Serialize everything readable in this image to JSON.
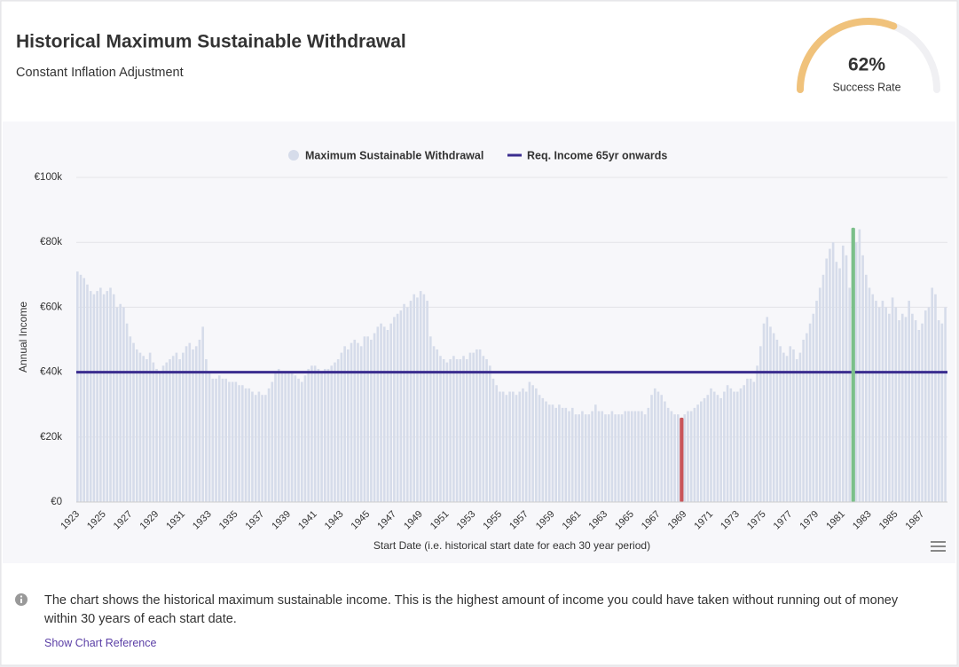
{
  "header": {
    "title": "Historical Maximum Sustainable Withdrawal",
    "subtitle": "Constant Inflation Adjustment"
  },
  "gauge": {
    "value": 62,
    "value_label": "62%",
    "label": "Success Rate",
    "color": "#f0c27b",
    "track_color": "#f0f0f3"
  },
  "chart_data": {
    "type": "bar",
    "y_label": "Annual Income",
    "x_label": "Start Date (i.e. historical start date for each 30 year period)",
    "ylim": [
      0,
      100000
    ],
    "yticks": [
      {
        "value": 0,
        "label": "€0"
      },
      {
        "value": 20000,
        "label": "€20k"
      },
      {
        "value": 40000,
        "label": "€40k"
      },
      {
        "value": 60000,
        "label": "€60k"
      },
      {
        "value": 80000,
        "label": "€80k"
      },
      {
        "value": 100000,
        "label": "€100k"
      }
    ],
    "grid": true,
    "lowest_color": "#c9555a",
    "highest_color": "#7bbf8a",
    "reference_line": {
      "name": "Req. Income 65yr onwards",
      "value": 40000,
      "color": "#3b2d8f"
    },
    "categories": [
      "1923",
      null,
      null,
      null,
      null,
      null,
      null,
      null,
      "1925",
      null,
      null,
      null,
      null,
      null,
      null,
      null,
      "1927",
      null,
      null,
      null,
      null,
      null,
      null,
      null,
      "1929",
      null,
      null,
      null,
      null,
      null,
      null,
      null,
      "1931",
      null,
      null,
      null,
      null,
      null,
      null,
      null,
      "1933",
      null,
      null,
      null,
      null,
      null,
      null,
      null,
      "1935",
      null,
      null,
      null,
      null,
      null,
      null,
      null,
      "1937",
      null,
      null,
      null,
      null,
      null,
      null,
      null,
      "1939",
      null,
      null,
      null,
      null,
      null,
      null,
      null,
      "1941",
      null,
      null,
      null,
      null,
      null,
      null,
      null,
      "1943",
      null,
      null,
      null,
      null,
      null,
      null,
      null,
      "1945",
      null,
      null,
      null,
      null,
      null,
      null,
      null,
      "1947",
      null,
      null,
      null,
      null,
      null,
      null,
      null,
      "1949",
      null,
      null,
      null,
      null,
      null,
      null,
      null,
      "1951",
      null,
      null,
      null,
      null,
      null,
      null,
      null,
      "1953",
      null,
      null,
      null,
      null,
      null,
      null,
      null,
      "1955",
      null,
      null,
      null,
      null,
      null,
      null,
      null,
      "1957",
      null,
      null,
      null,
      null,
      null,
      null,
      null,
      "1959",
      null,
      null,
      null,
      null,
      null,
      null,
      null,
      "1961",
      null,
      null,
      null,
      null,
      null,
      null,
      null,
      "1963",
      null,
      null,
      null,
      null,
      null,
      null,
      null,
      "1965",
      null,
      null,
      null,
      null,
      null,
      null,
      null,
      "1967",
      null,
      null,
      null,
      null,
      null,
      null,
      null,
      "1969",
      null,
      null,
      null,
      null,
      null,
      null,
      null,
      "1971",
      null,
      null,
      null,
      null,
      null,
      null,
      null,
      "1973",
      null,
      null,
      null,
      null,
      null,
      null,
      null,
      "1975",
      null,
      null,
      null,
      null,
      null,
      null,
      null,
      "1977",
      null,
      null,
      null,
      null,
      null,
      null,
      null,
      "1979",
      null,
      null,
      null,
      null,
      null,
      null,
      null,
      "1981",
      null,
      null,
      null,
      null,
      null,
      null,
      null,
      "1983",
      null,
      null,
      null,
      null,
      null,
      null,
      null,
      "1985",
      null,
      null,
      null,
      null,
      null,
      null,
      null,
      "1987",
      null,
      null,
      null,
      null,
      null,
      null,
      null
    ],
    "series": [
      {
        "name": "Maximum Sustainable Withdrawal",
        "color": "#d6dcea",
        "values": [
          71000,
          70000,
          69000,
          67000,
          65000,
          64000,
          65000,
          66000,
          64000,
          65000,
          66000,
          64000,
          60000,
          61000,
          60000,
          55000,
          51000,
          49000,
          47000,
          46000,
          45000,
          44000,
          46000,
          43000,
          41000,
          40000,
          42000,
          43000,
          44000,
          45000,
          46000,
          44000,
          46000,
          48000,
          49000,
          47000,
          48000,
          50000,
          54000,
          44000,
          40000,
          38000,
          38000,
          39000,
          38000,
          38000,
          37000,
          37000,
          37000,
          36000,
          36000,
          35000,
          35000,
          34000,
          33000,
          34000,
          33000,
          33000,
          35000,
          37000,
          40000,
          41000,
          40000,
          40000,
          40000,
          40000,
          39000,
          38000,
          37000,
          39000,
          41000,
          42000,
          42000,
          41000,
          40000,
          41000,
          41000,
          42000,
          43000,
          44000,
          46000,
          48000,
          47000,
          49000,
          50000,
          49000,
          48000,
          51000,
          51000,
          50000,
          52000,
          54000,
          55000,
          54000,
          53000,
          55000,
          57000,
          58000,
          59000,
          61000,
          60000,
          62000,
          64000,
          63000,
          65000,
          64000,
          62000,
          51000,
          48000,
          47000,
          45000,
          44000,
          43000,
          44000,
          45000,
          44000,
          44000,
          45000,
          44000,
          46000,
          46000,
          47000,
          47000,
          45000,
          44000,
          42000,
          38000,
          36000,
          34000,
          34000,
          33000,
          34000,
          34000,
          33000,
          34000,
          35000,
          34000,
          37000,
          36000,
          35000,
          33000,
          32000,
          31000,
          30000,
          30000,
          29000,
          30000,
          29000,
          29000,
          28000,
          29000,
          27000,
          27000,
          28000,
          27000,
          27000,
          28000,
          30000,
          28000,
          28000,
          27000,
          27000,
          28000,
          27000,
          27000,
          27000,
          28000,
          28000,
          28000,
          28000,
          28000,
          28000,
          27000,
          29000,
          33000,
          35000,
          34000,
          33000,
          31000,
          29000,
          28000,
          27000,
          27000,
          26000,
          27000,
          28000,
          28000,
          29000,
          30000,
          31000,
          32000,
          33000,
          35000,
          34000,
          33000,
          32000,
          34000,
          36000,
          35000,
          34000,
          34000,
          35000,
          36000,
          38000,
          38000,
          37000,
          42000,
          48000,
          55000,
          57000,
          54000,
          52000,
          50000,
          48000,
          46000,
          45000,
          48000,
          47000,
          44000,
          46000,
          50000,
          52000,
          55000,
          58000,
          62000,
          66000,
          70000,
          75000,
          78000,
          80000,
          74000,
          72000,
          79000,
          76000,
          66000,
          84500,
          80000,
          84000,
          76000,
          70000,
          66000,
          64000,
          62000,
          60000,
          62000,
          60000,
          58000,
          63000,
          60000,
          56000,
          58000,
          57000,
          62000,
          58000,
          56000,
          53000,
          55000,
          59000,
          60000,
          66000,
          64000,
          56000,
          55000,
          60000
        ]
      }
    ]
  },
  "footer": {
    "note": "The chart shows the historical maximum sustainable income. This is the highest amount of income you could have taken without running out of money within 30 years of each start date.",
    "link": "Show Chart Reference"
  }
}
